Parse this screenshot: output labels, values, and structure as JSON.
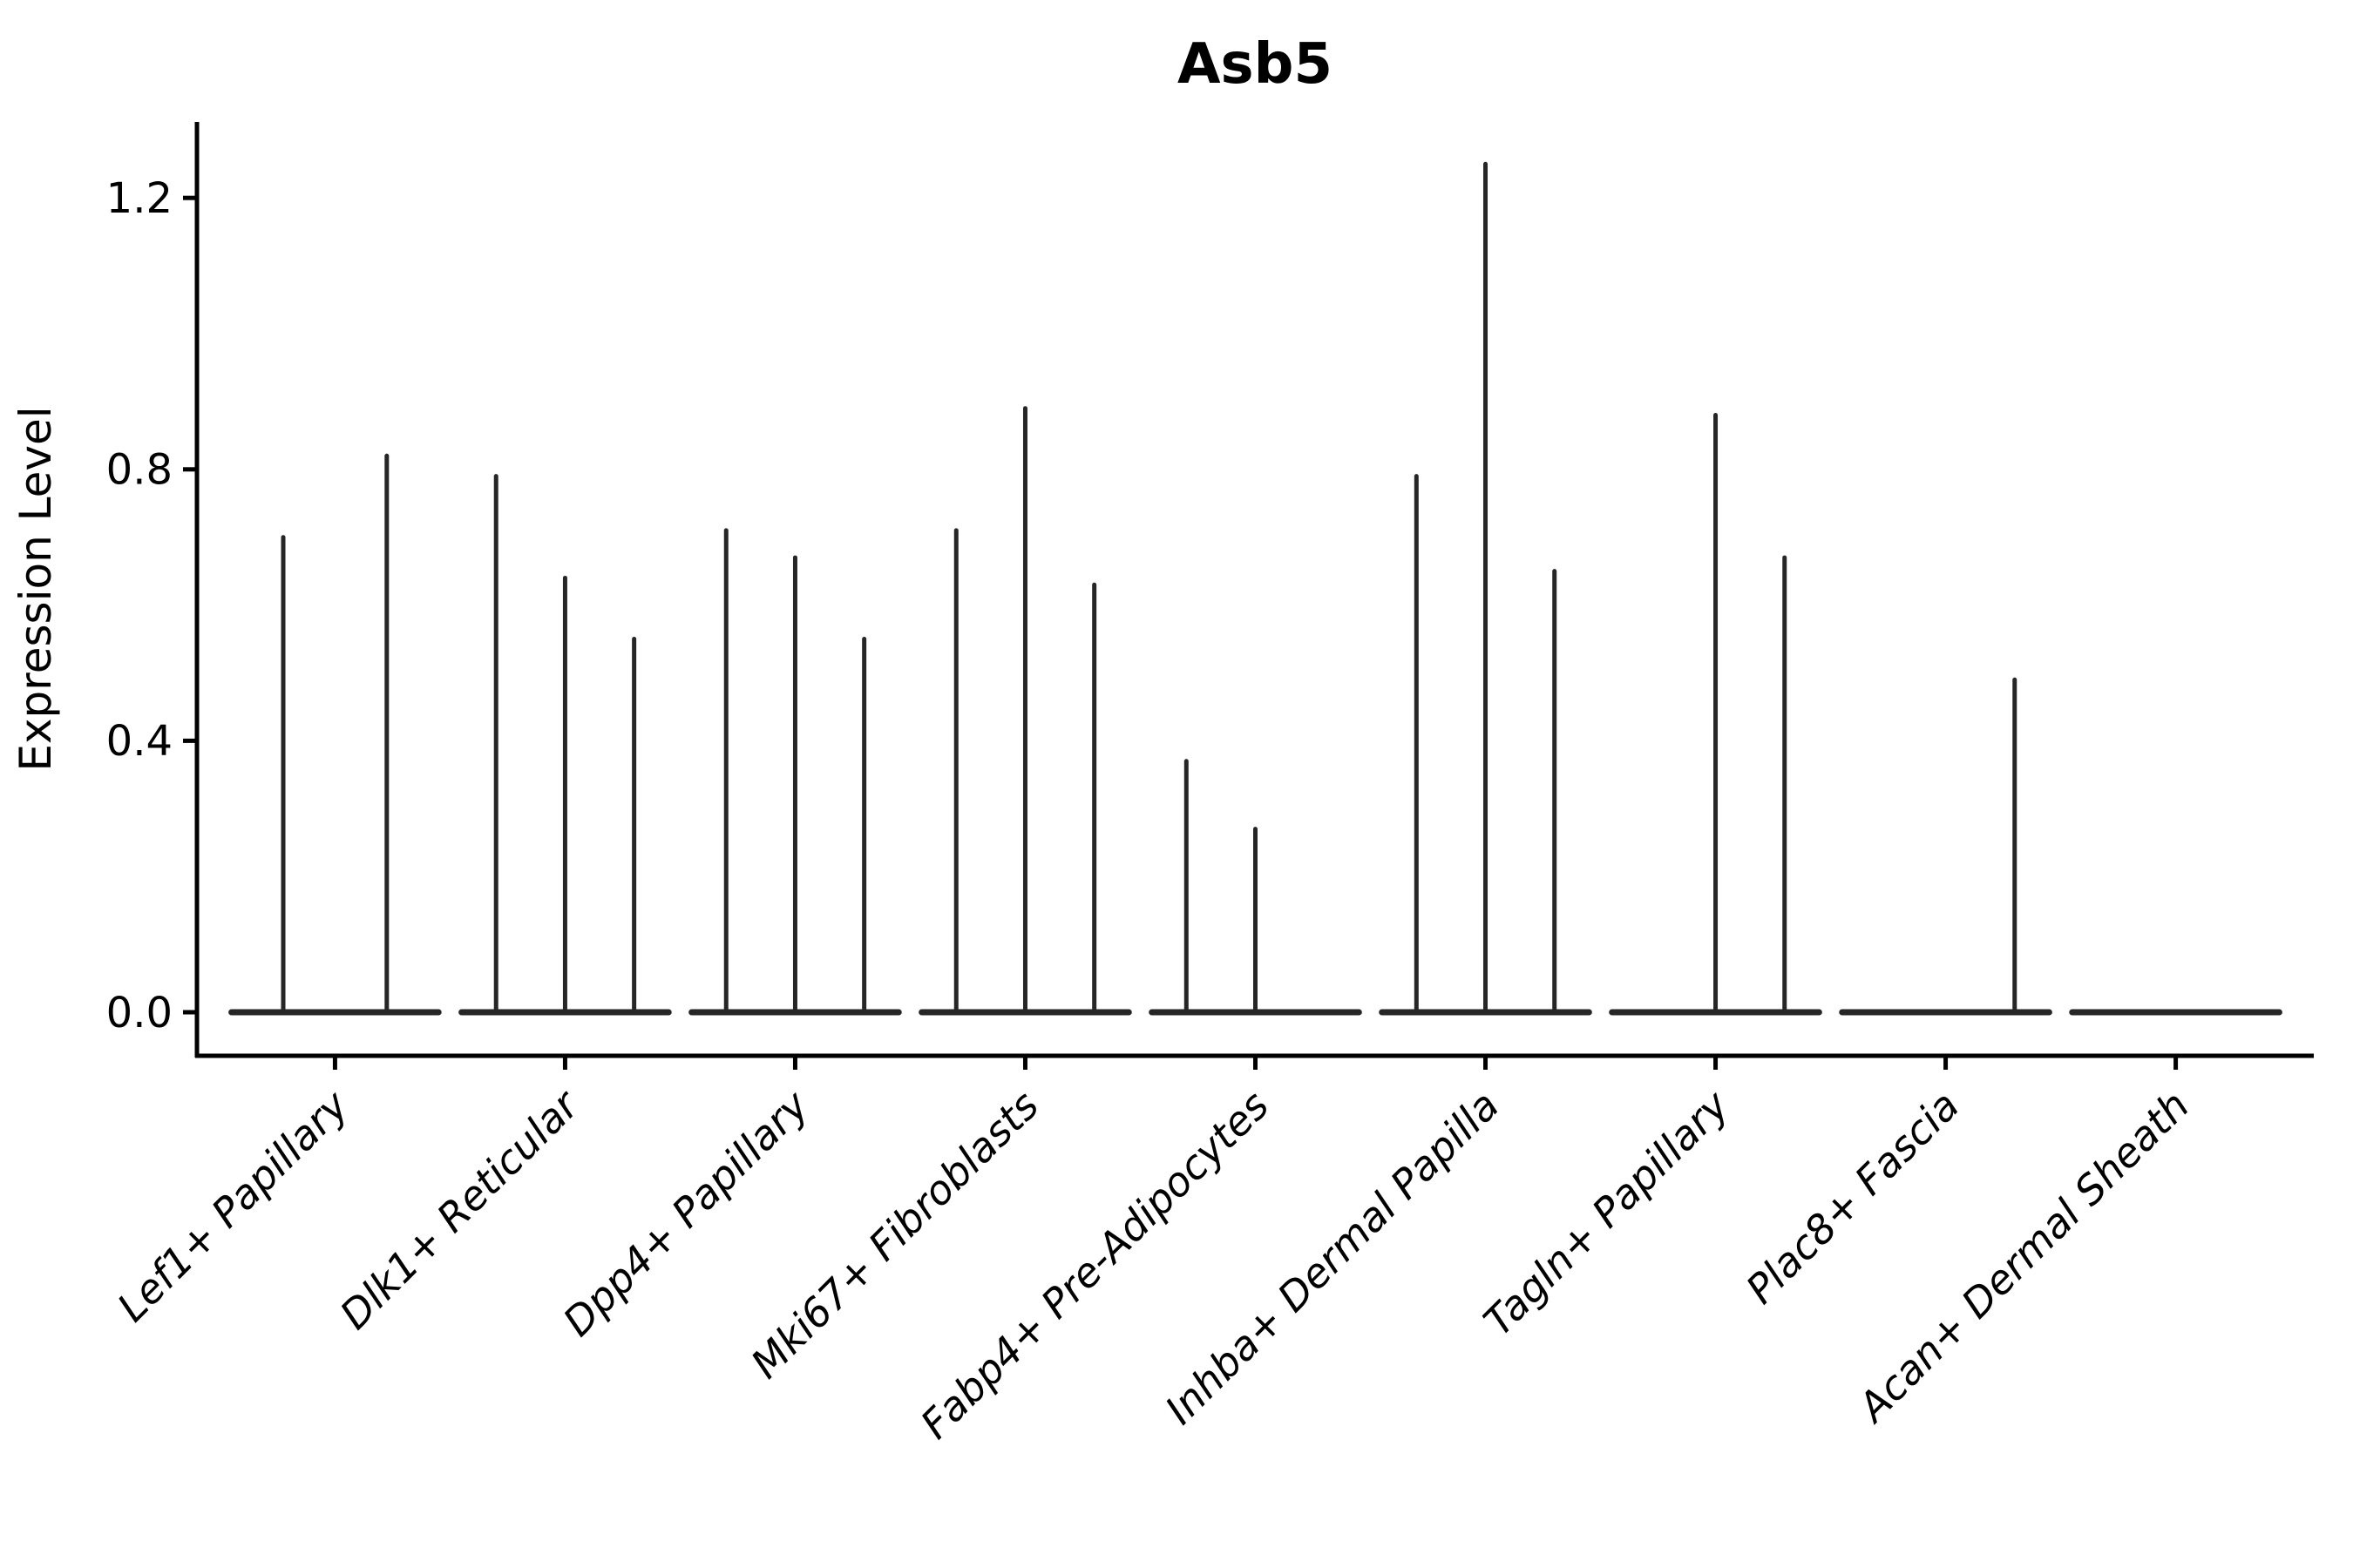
{
  "chart_data": {
    "type": "violin",
    "title": "Asb5",
    "xlabel": "",
    "ylabel": "Expression Level",
    "ytick_labels": [
      "0.0",
      "0.4",
      "0.8",
      "1.2"
    ],
    "ytick_values": [
      0.0,
      0.4,
      0.8,
      1.2
    ],
    "ylim": [
      -0.06,
      1.31
    ],
    "grid": false,
    "legend": "none",
    "categories": [
      "Lef1+ Papillary",
      "Dlk1+ Reticular",
      "Dpp4+ Papillary",
      "Mki67+ Fibroblasts",
      "Fabp4+ Pre-Adipocytes",
      "Inhba+ Dermal Papilla",
      "Tagln+ Papillary",
      "Plac8+ Fascia",
      "Acan+ Dermal Sheath"
    ],
    "series": [
      {
        "category": "Lef1+ Papillary",
        "violin_peaks": [
          0.7,
          0.82
        ]
      },
      {
        "category": "Dlk1+ Reticular",
        "violin_peaks": [
          0.79,
          0.64,
          0.55
        ]
      },
      {
        "category": "Dpp4+ Papillary",
        "violin_peaks": [
          0.71,
          0.67,
          0.55
        ]
      },
      {
        "category": "Mki67+ Fibroblasts",
        "violin_peaks": [
          0.71,
          0.89,
          0.63
        ]
      },
      {
        "category": "Fabp4+ Pre-Adipocytes",
        "violin_peaks": [
          0.37,
          0.27,
          0.0
        ]
      },
      {
        "category": "Inhba+ Dermal Papilla",
        "violin_peaks": [
          0.79,
          1.25,
          0.65
        ]
      },
      {
        "category": "Tagln+ Papillary",
        "violin_peaks": [
          0.0,
          0.88,
          0.67
        ]
      },
      {
        "category": "Plac8+ Fascia",
        "violin_peaks": [
          0.0,
          0.0,
          0.49
        ]
      },
      {
        "category": "Acan+ Dermal Sheath",
        "violin_peaks": [
          0.0,
          0.0,
          0.0
        ]
      }
    ],
    "colors": {
      "violin_stroke": "#262626",
      "axis": "#000000",
      "text": "#000000",
      "background": "#ffffff"
    }
  }
}
